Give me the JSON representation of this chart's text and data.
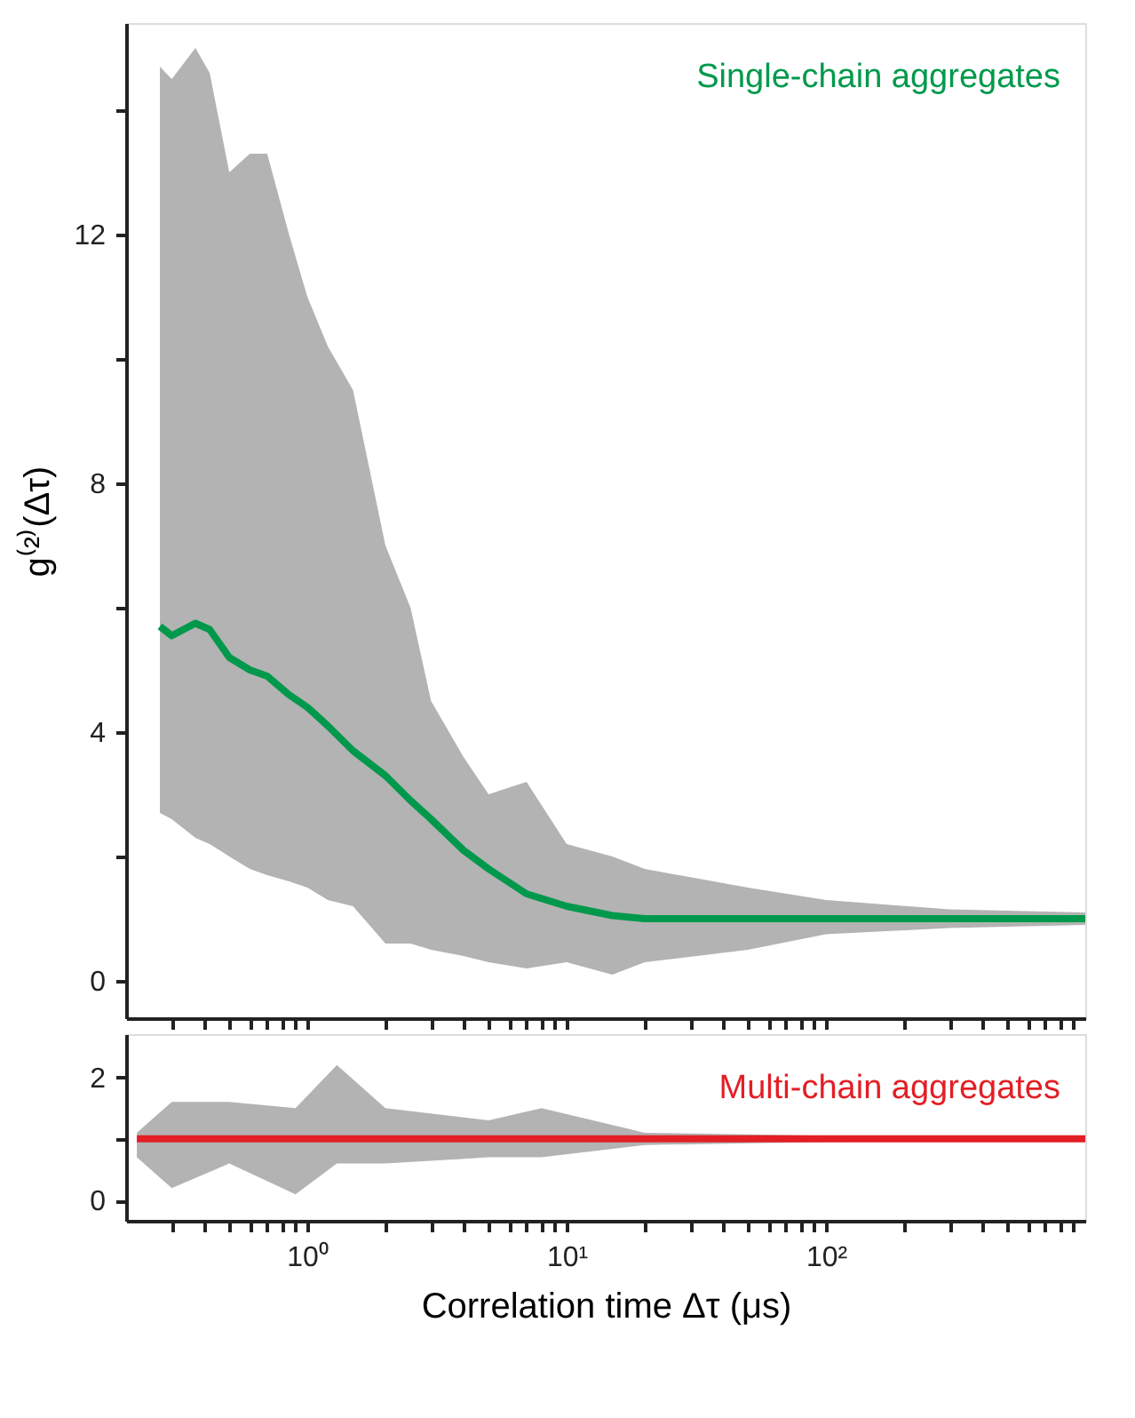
{
  "chart_data": [
    {
      "type": "line",
      "ylabel": "g⁽²⁾(Δτ)",
      "xlim": [
        0.2,
        1000
      ],
      "ylim": [
        -0.6,
        15.4
      ],
      "log": "x",
      "grid": false,
      "tick_labels": "y",
      "xticks": [
        {
          "value": 0.3,
          "label": null
        },
        {
          "value": 0.4,
          "label": null
        },
        {
          "value": 0.5,
          "label": null
        },
        {
          "value": 0.6,
          "label": null
        },
        {
          "value": 0.7,
          "label": null
        },
        {
          "value": 0.8,
          "label": null
        },
        {
          "value": 0.9,
          "label": null
        },
        {
          "value": 1,
          "label": null
        },
        {
          "value": 2,
          "label": null
        },
        {
          "value": 3,
          "label": null
        },
        {
          "value": 4,
          "label": null
        },
        {
          "value": 5,
          "label": null
        },
        {
          "value": 6,
          "label": null
        },
        {
          "value": 7,
          "label": null
        },
        {
          "value": 8,
          "label": null
        },
        {
          "value": 9,
          "label": null
        },
        {
          "value": 10,
          "label": null
        },
        {
          "value": 20,
          "label": null
        },
        {
          "value": 30,
          "label": null
        },
        {
          "value": 40,
          "label": null
        },
        {
          "value": 50,
          "label": null
        },
        {
          "value": 60,
          "label": null
        },
        {
          "value": 70,
          "label": null
        },
        {
          "value": 80,
          "label": null
        },
        {
          "value": 90,
          "label": null
        },
        {
          "value": 100,
          "label": null
        },
        {
          "value": 200,
          "label": null
        },
        {
          "value": 300,
          "label": null
        },
        {
          "value": 400,
          "label": null
        },
        {
          "value": 500,
          "label": null
        },
        {
          "value": 600,
          "label": null
        },
        {
          "value": 700,
          "label": null
        },
        {
          "value": 800,
          "label": null
        },
        {
          "value": 900,
          "label": null
        }
      ],
      "yticks": [
        0,
        {
          "value": 2,
          "label": null
        },
        4,
        {
          "value": 6,
          "label": null
        },
        8,
        {
          "value": 10,
          "label": null
        },
        12,
        {
          "value": 14,
          "label": null
        }
      ],
      "series": [
        {
          "name": "Single-chain aggregates",
          "color": "#00994c",
          "x": [
            0.27,
            0.3,
            0.37,
            0.42,
            0.5,
            0.6,
            0.7,
            0.85,
            1,
            1.2,
            1.5,
            2,
            2.5,
            3,
            4,
            5,
            7,
            10,
            15,
            20,
            50,
            100,
            300,
            1000
          ],
          "values": [
            5.7,
            5.55,
            5.75,
            5.65,
            5.2,
            5.0,
            4.9,
            4.6,
            4.4,
            4.1,
            3.7,
            3.3,
            2.9,
            2.6,
            2.1,
            1.8,
            1.4,
            1.2,
            1.05,
            1.0,
            1.0,
            1.0,
            1.0,
            1.0
          ],
          "lower": [
            2.7,
            2.6,
            2.3,
            2.2,
            2.0,
            1.8,
            1.7,
            1.6,
            1.5,
            1.3,
            1.2,
            0.6,
            0.6,
            0.5,
            0.4,
            0.3,
            0.2,
            0.3,
            0.1,
            0.3,
            0.5,
            0.75,
            0.85,
            0.9
          ],
          "upper": [
            14.7,
            14.5,
            15.0,
            14.6,
            13.0,
            13.3,
            13.3,
            12.0,
            11.0,
            10.2,
            9.5,
            7.0,
            6.0,
            4.5,
            3.6,
            3.0,
            3.2,
            2.2,
            2.0,
            1.8,
            1.5,
            1.3,
            1.15,
            1.1
          ]
        }
      ]
    },
    {
      "type": "line",
      "xlabel": "Correlation time Δτ (μs)",
      "xlim": [
        0.2,
        1000
      ],
      "ylim": [
        -0.33,
        2.7
      ],
      "log": "x",
      "grid": false,
      "xticks": [
        {
          "value": 0.3,
          "label": null
        },
        {
          "value": 0.4,
          "label": null
        },
        {
          "value": 0.5,
          "label": null
        },
        {
          "value": 0.6,
          "label": null
        },
        {
          "value": 0.7,
          "label": null
        },
        {
          "value": 0.8,
          "label": null
        },
        {
          "value": 0.9,
          "label": null
        },
        {
          "value": 1,
          "label": "10⁰"
        },
        {
          "value": 2,
          "label": null
        },
        {
          "value": 3,
          "label": null
        },
        {
          "value": 4,
          "label": null
        },
        {
          "value": 5,
          "label": null
        },
        {
          "value": 6,
          "label": null
        },
        {
          "value": 7,
          "label": null
        },
        {
          "value": 8,
          "label": null
        },
        {
          "value": 9,
          "label": null
        },
        {
          "value": 10,
          "label": "10¹"
        },
        {
          "value": 20,
          "label": null
        },
        {
          "value": 30,
          "label": null
        },
        {
          "value": 40,
          "label": null
        },
        {
          "value": 50,
          "label": null
        },
        {
          "value": 60,
          "label": null
        },
        {
          "value": 70,
          "label": null
        },
        {
          "value": 80,
          "label": null
        },
        {
          "value": 90,
          "label": null
        },
        {
          "value": 100,
          "label": "10²"
        },
        {
          "value": 200,
          "label": null
        },
        {
          "value": 300,
          "label": null
        },
        {
          "value": 400,
          "label": null
        },
        {
          "value": 500,
          "label": null
        },
        {
          "value": 600,
          "label": null
        },
        {
          "value": 700,
          "label": null
        },
        {
          "value": 800,
          "label": null
        },
        {
          "value": 900,
          "label": null
        }
      ],
      "yticks": [
        0,
        {
          "value": 1,
          "label": null
        },
        2
      ],
      "series": [
        {
          "name": "Multi-chain aggregates",
          "color": "#e31e24",
          "x": [
            0.22,
            0.3,
            0.5,
            0.9,
            1.3,
            2,
            5,
            8,
            20,
            100,
            1000
          ],
          "values": [
            1.0,
            1.0,
            1.0,
            1.0,
            1.0,
            1.0,
            1.0,
            1.0,
            1.0,
            1.0,
            1.0
          ],
          "lower": [
            0.7,
            0.2,
            0.6,
            0.1,
            0.6,
            0.6,
            0.7,
            0.7,
            0.9,
            0.95,
            0.97
          ],
          "upper": [
            1.1,
            1.6,
            1.6,
            1.5,
            2.2,
            1.5,
            1.3,
            1.5,
            1.1,
            1.05,
            1.03
          ]
        }
      ]
    }
  ]
}
